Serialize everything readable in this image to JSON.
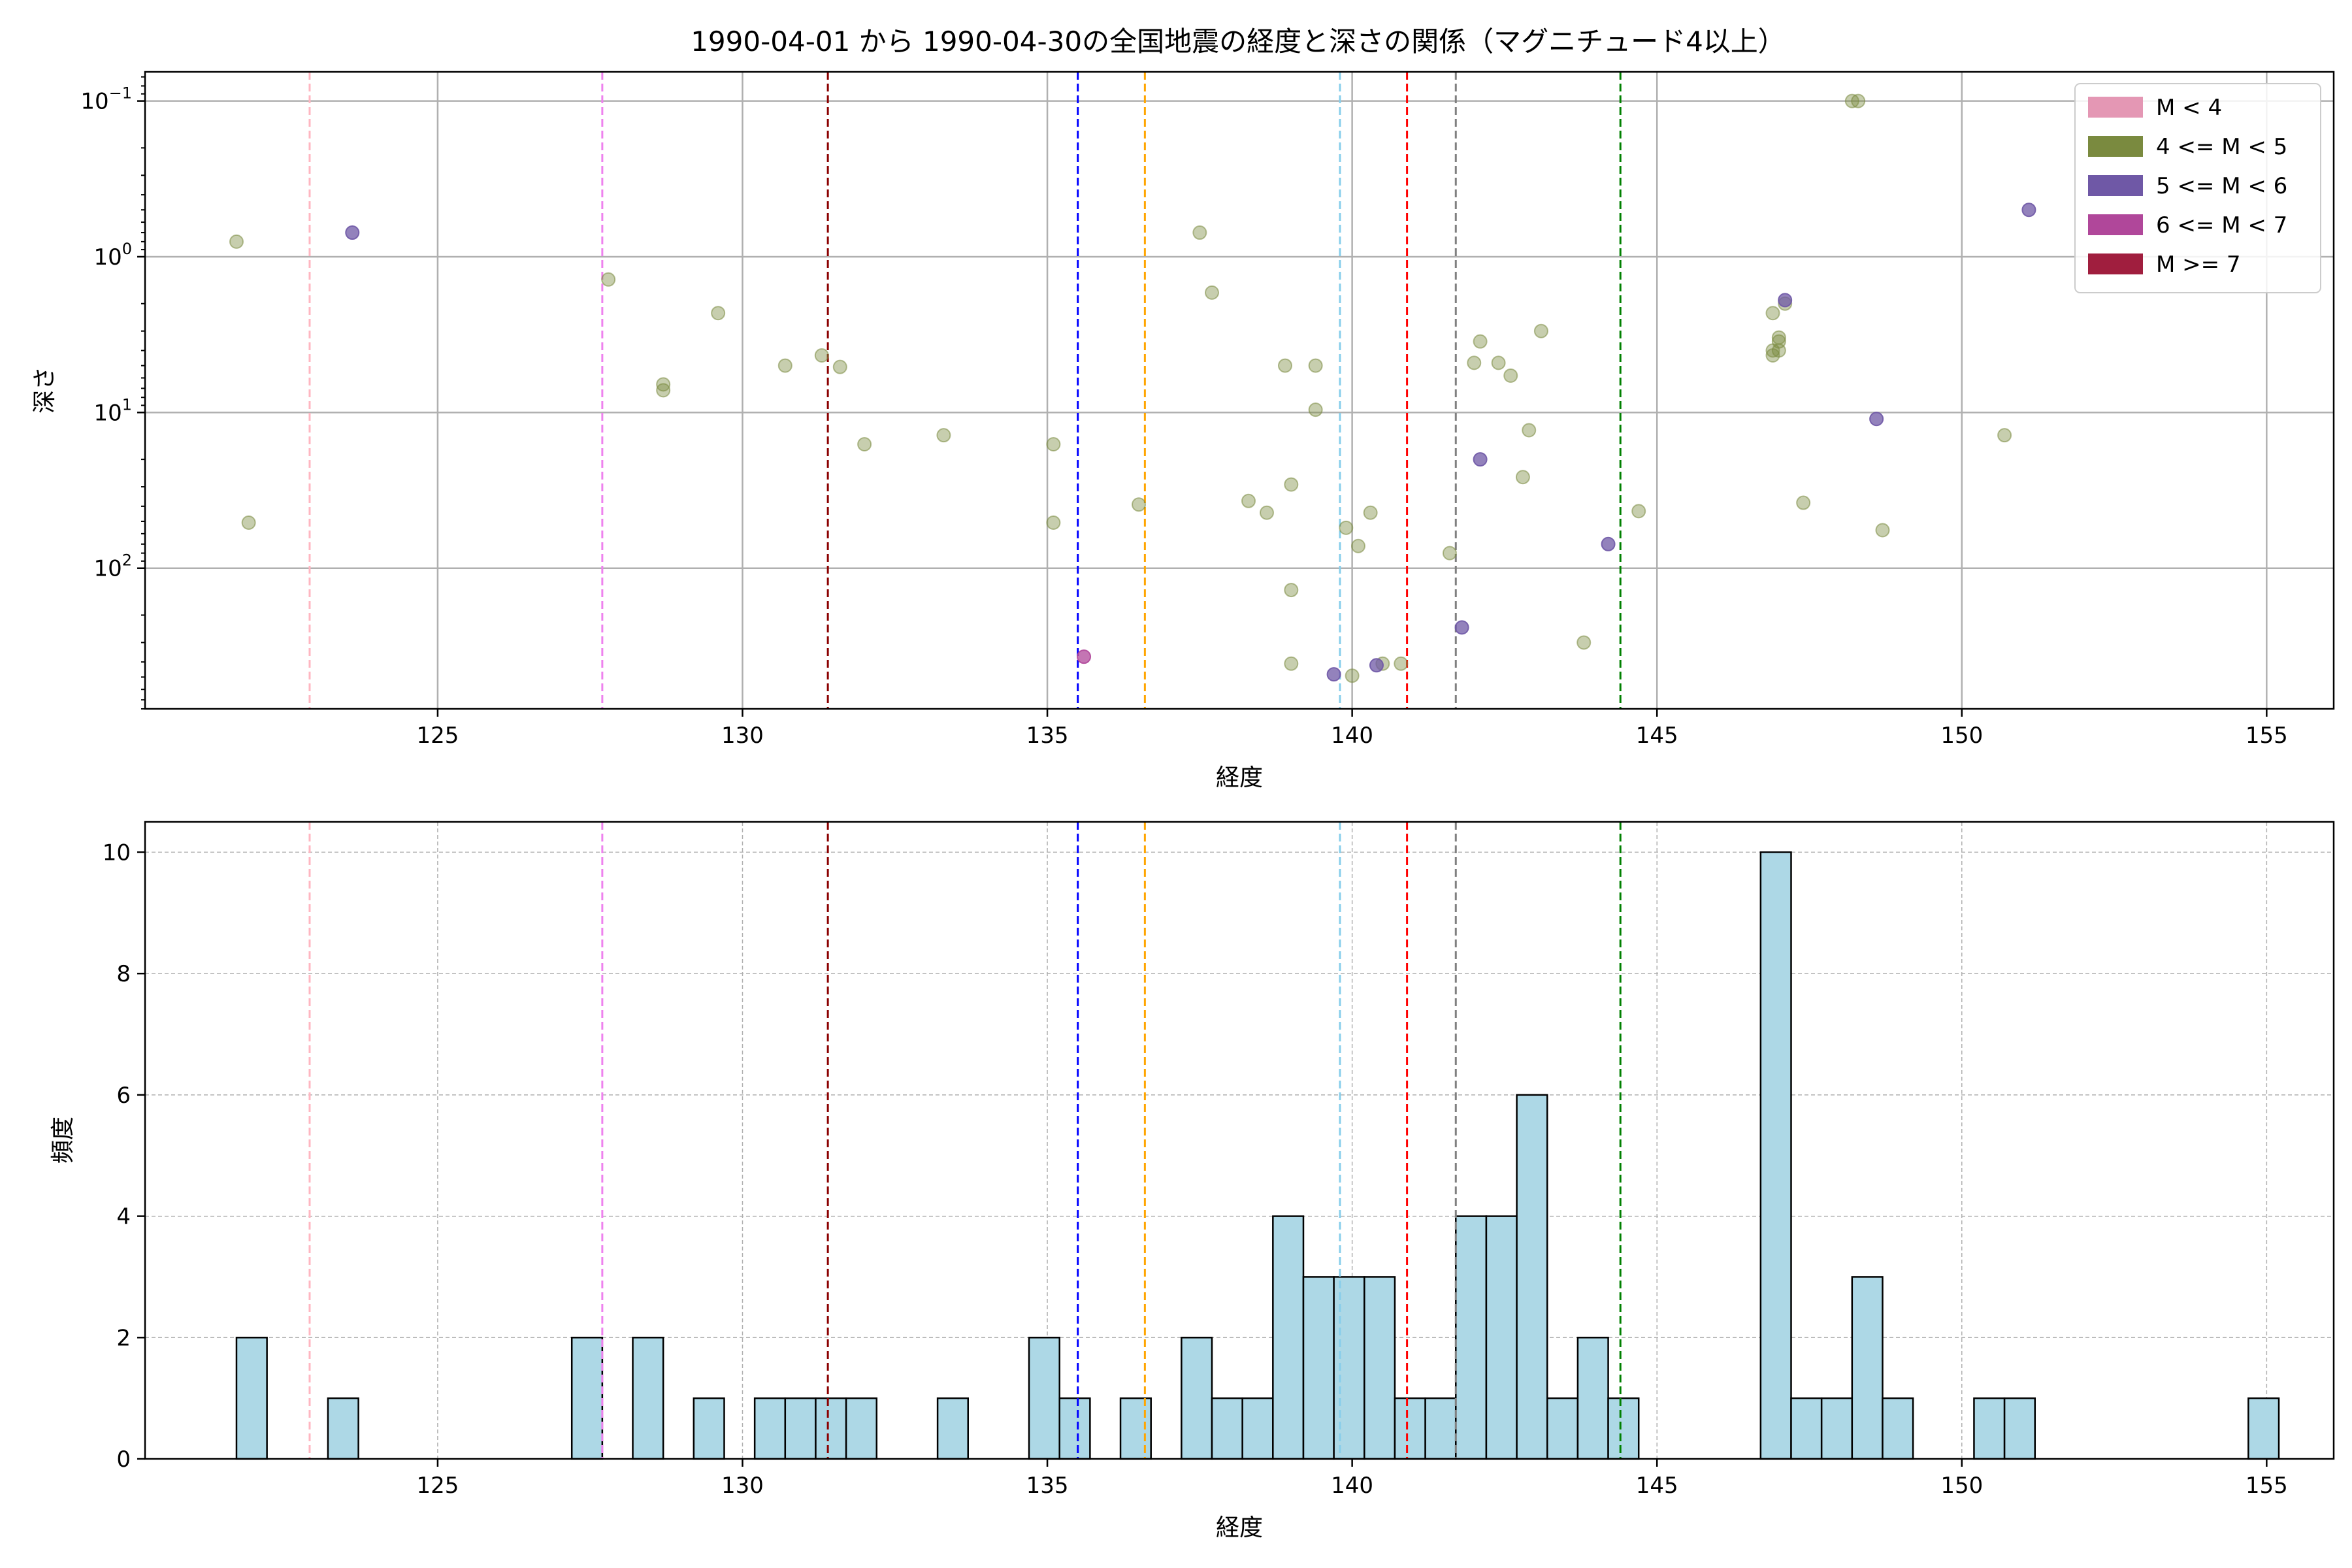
{
  "title": "1990-04-01 から 1990-04-30の全国地震の経度と深さの関係（マグニチュード4以上）",
  "colors": {
    "scatter_m4_5": "#7a8a3f",
    "scatter_m5_6": "#6f58a6",
    "scatter_m6_7": "#b0479a",
    "hist_fill": "#add8e6",
    "hist_edge": "#000000",
    "grid": "#b0b0b0"
  },
  "chart_data": [
    {
      "type": "scatter",
      "xlabel": "経度",
      "ylabel": "深さ",
      "xlim": [
        120.2,
        156.1
      ],
      "ylim_log": [
        0.065,
        800
      ],
      "yscale": "log",
      "y_inverted": true,
      "grid": true,
      "legend_position": "top-right",
      "xticks": [
        125,
        130,
        135,
        140,
        145,
        150,
        155
      ],
      "yticks": [
        {
          "value": 0.1,
          "base": "10",
          "exp": "−1"
        },
        {
          "value": 1,
          "base": "10",
          "exp": "0"
        },
        {
          "value": 10,
          "base": "10",
          "exp": "1"
        },
        {
          "value": 100,
          "base": "10",
          "exp": "2"
        }
      ],
      "legend": [
        {
          "label": "M < 4",
          "color": "#e497b4"
        },
        {
          "label": "4 <= M < 5",
          "color": "#7a8a3f"
        },
        {
          "label": "5 <= M < 6",
          "color": "#6f58a6"
        },
        {
          "label": "6 <= M < 7",
          "color": "#b0479a"
        },
        {
          "label": "M >= 7",
          "color": "#a01e3e"
        }
      ],
      "vlines": [
        {
          "x": 122.9,
          "color": "#ffb6c1"
        },
        {
          "x": 127.7,
          "color": "#ee82ee"
        },
        {
          "x": 131.4,
          "color": "#8b0000"
        },
        {
          "x": 135.5,
          "color": "#0000ff"
        },
        {
          "x": 136.6,
          "color": "#ffa500"
        },
        {
          "x": 139.8,
          "color": "#87ceeb"
        },
        {
          "x": 140.9,
          "color": "#ff0000"
        },
        {
          "x": 141.7,
          "color": "#808080"
        },
        {
          "x": 144.4,
          "color": "#008000"
        }
      ],
      "series": [
        {
          "class": "4 <= M < 5",
          "points": [
            [
              121.7,
              0.8
            ],
            [
              121.9,
              51
            ],
            [
              127.8,
              1.4
            ],
            [
              128.7,
              7.2
            ],
            [
              128.7,
              6.6
            ],
            [
              129.6,
              2.3
            ],
            [
              130.7,
              5.0
            ],
            [
              131.3,
              4.3
            ],
            [
              131.6,
              5.1
            ],
            [
              132.0,
              16
            ],
            [
              133.3,
              14
            ],
            [
              135.1,
              16
            ],
            [
              135.1,
              51
            ],
            [
              136.5,
              39
            ],
            [
              137.5,
              0.7
            ],
            [
              137.7,
              1.7
            ],
            [
              138.3,
              37
            ],
            [
              138.6,
              44
            ],
            [
              138.9,
              5.0
            ],
            [
              139.0,
              29
            ],
            [
              139.0,
              138
            ],
            [
              139.0,
              410
            ],
            [
              139.4,
              5.0
            ],
            [
              139.4,
              9.6
            ],
            [
              139.9,
              55
            ],
            [
              140.0,
              490
            ],
            [
              140.1,
              72
            ],
            [
              140.3,
              44
            ],
            [
              140.5,
              410
            ],
            [
              140.8,
              410
            ],
            [
              141.6,
              80
            ],
            [
              142.0,
              4.8
            ],
            [
              142.1,
              3.5
            ],
            [
              142.4,
              4.8
            ],
            [
              142.6,
              5.8
            ],
            [
              142.8,
              26
            ],
            [
              142.9,
              13
            ],
            [
              143.1,
              3.0
            ],
            [
              143.8,
              300
            ],
            [
              144.7,
              43
            ],
            [
              146.9,
              4.0
            ],
            [
              146.9,
              4.3
            ],
            [
              146.9,
              2.3
            ],
            [
              147.0,
              3.3
            ],
            [
              147.0,
              4.0
            ],
            [
              147.0,
              3.5
            ],
            [
              147.1,
              2.0
            ],
            [
              147.4,
              38
            ],
            [
              148.2,
              0.1
            ],
            [
              148.3,
              0.1
            ],
            [
              148.7,
              57
            ],
            [
              150.7,
              14
            ]
          ]
        },
        {
          "class": "5 <= M < 6",
          "points": [
            [
              123.6,
              0.7
            ],
            [
              139.7,
              480
            ],
            [
              140.4,
              420
            ],
            [
              141.8,
              240
            ],
            [
              142.1,
              20
            ],
            [
              144.2,
              70
            ],
            [
              147.1,
              1.9
            ],
            [
              148.6,
              11
            ],
            [
              151.1,
              0.5
            ]
          ]
        },
        {
          "class": "6 <= M < 7",
          "points": [
            [
              135.6,
              370
            ]
          ]
        }
      ]
    },
    {
      "type": "bar",
      "xlabel": "経度",
      "ylabel": "頻度",
      "xlim": [
        120.2,
        156.1
      ],
      "ylim": [
        0,
        10.5
      ],
      "grid": true,
      "xticks": [
        125,
        130,
        135,
        140,
        145,
        150,
        155
      ],
      "yticks": [
        0,
        2,
        4,
        6,
        8,
        10
      ],
      "bin_width": 0.5,
      "bins": [
        {
          "start": 121.7,
          "count": 2
        },
        {
          "start": 123.2,
          "count": 1
        },
        {
          "start": 127.2,
          "count": 2
        },
        {
          "start": 128.2,
          "count": 2
        },
        {
          "start": 129.2,
          "count": 1
        },
        {
          "start": 130.2,
          "count": 1
        },
        {
          "start": 130.7,
          "count": 1
        },
        {
          "start": 131.2,
          "count": 1
        },
        {
          "start": 131.7,
          "count": 1
        },
        {
          "start": 133.2,
          "count": 1
        },
        {
          "start": 134.7,
          "count": 2
        },
        {
          "start": 135.2,
          "count": 1
        },
        {
          "start": 136.2,
          "count": 1
        },
        {
          "start": 137.2,
          "count": 2
        },
        {
          "start": 137.7,
          "count": 1
        },
        {
          "start": 138.2,
          "count": 1
        },
        {
          "start": 138.7,
          "count": 4
        },
        {
          "start": 139.2,
          "count": 3
        },
        {
          "start": 139.7,
          "count": 3
        },
        {
          "start": 140.2,
          "count": 3
        },
        {
          "start": 140.7,
          "count": 1
        },
        {
          "start": 141.2,
          "count": 1
        },
        {
          "start": 141.7,
          "count": 4
        },
        {
          "start": 142.2,
          "count": 4
        },
        {
          "start": 142.7,
          "count": 6
        },
        {
          "start": 143.2,
          "count": 1
        },
        {
          "start": 143.7,
          "count": 2
        },
        {
          "start": 144.2,
          "count": 1
        },
        {
          "start": 146.7,
          "count": 10
        },
        {
          "start": 147.2,
          "count": 1
        },
        {
          "start": 147.7,
          "count": 1
        },
        {
          "start": 148.2,
          "count": 3
        },
        {
          "start": 148.7,
          "count": 1
        },
        {
          "start": 150.2,
          "count": 1
        },
        {
          "start": 150.7,
          "count": 1
        },
        {
          "start": 154.7,
          "count": 1
        }
      ],
      "vlines": [
        {
          "x": 122.9,
          "color": "#ffb6c1"
        },
        {
          "x": 127.7,
          "color": "#ee82ee"
        },
        {
          "x": 131.4,
          "color": "#8b0000"
        },
        {
          "x": 135.5,
          "color": "#0000ff"
        },
        {
          "x": 136.6,
          "color": "#ffa500"
        },
        {
          "x": 139.8,
          "color": "#87ceeb"
        },
        {
          "x": 140.9,
          "color": "#ff0000"
        },
        {
          "x": 141.7,
          "color": "#808080"
        },
        {
          "x": 144.4,
          "color": "#008000"
        }
      ]
    }
  ]
}
